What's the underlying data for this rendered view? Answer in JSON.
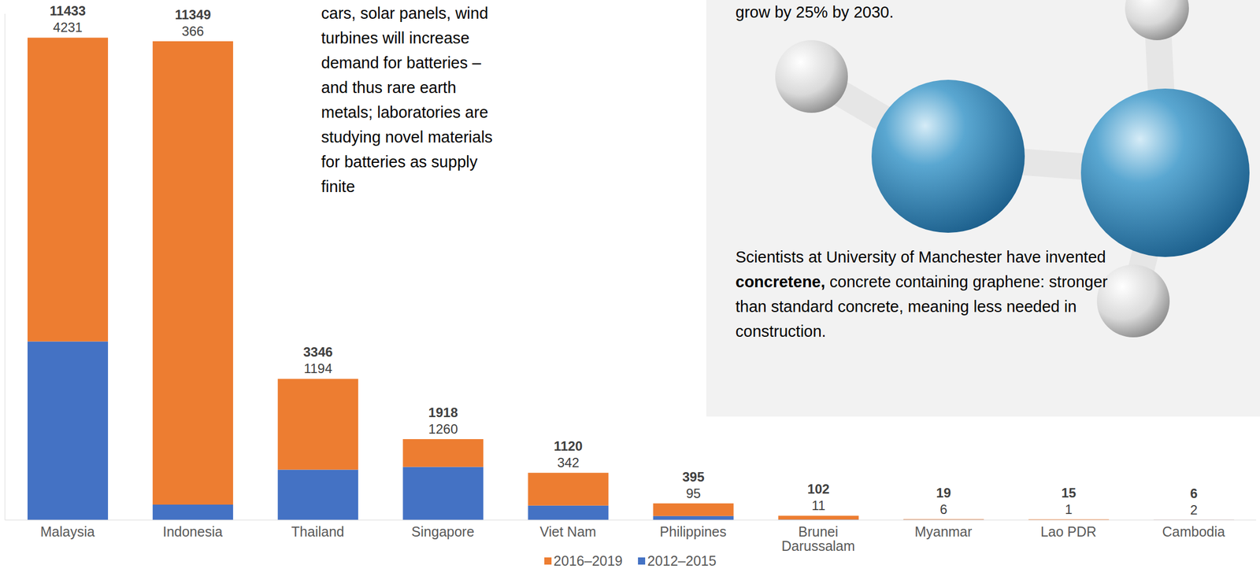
{
  "chart_data": {
    "type": "bar",
    "stacked": true,
    "categories": [
      "Malaysia",
      "Indonesia",
      "Thailand",
      "Singapore",
      "Viet Nam",
      "Philippines",
      "Brunei Darussalam",
      "Myanmar",
      "Lao PDR",
      "Cambodia"
    ],
    "series": [
      {
        "name": "2012–2015",
        "color": "#4472C4",
        "values": [
          4231,
          366,
          1194,
          1260,
          342,
          95,
          11,
          6,
          1,
          2
        ],
        "data_labels": true
      },
      {
        "name": "2016–2019",
        "color": "#ED7D31",
        "values": [
          7202,
          10983,
          2152,
          658,
          778,
          300,
          91,
          13,
          14,
          4
        ]
      }
    ],
    "totals": [
      11433,
      11349,
      3346,
      1918,
      1120,
      395,
      102,
      19,
      15,
      6
    ],
    "ylim": [
      0,
      12000
    ],
    "tick_labels": "x",
    "legend": "bottom",
    "grid": false,
    "annotations": {
      "left_text": [
        "cars, solar panels, wind",
        "turbines will increase",
        "demand for batteries –",
        "and thus rare earth",
        "metals; laboratories are",
        "studying novel materials",
        "for batteries as supply",
        "finite"
      ],
      "right_panel": {
        "heading": "grow by 25% by 2030.",
        "paragraph": [
          {
            "text": "Scientists at University of Manchester have invented "
          },
          {
            "text": "concretene,",
            "bold": true
          },
          {
            "text": " concrete containing graphene: stronger than standard concrete, meaning less needed in construction."
          }
        ]
      }
    }
  }
}
